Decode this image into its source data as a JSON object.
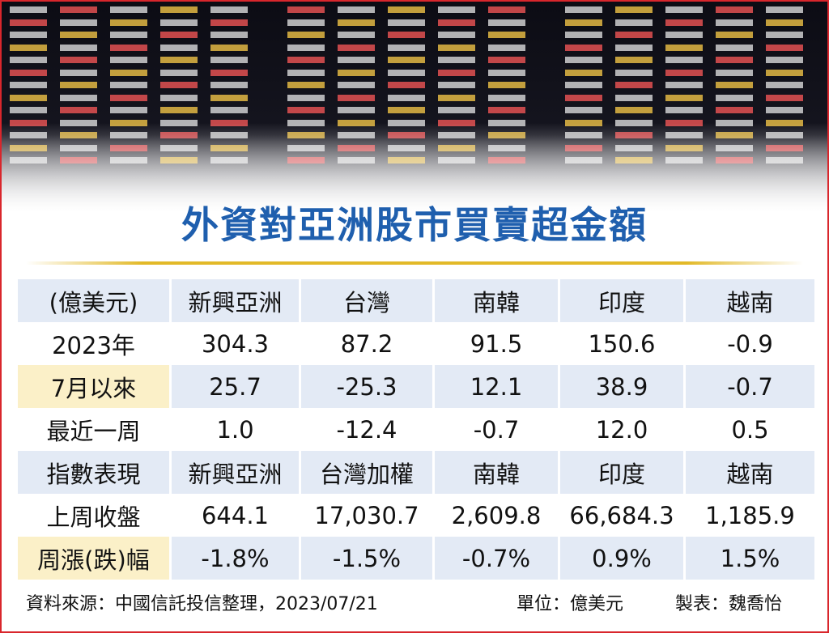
{
  "title": "外資對亞洲股市買賣超金額",
  "table": {
    "rows": [
      [
        "(億美元)",
        "新興亞洲",
        "台灣",
        "南韓",
        "印度",
        "越南"
      ],
      [
        "2023年",
        "304.3",
        "87.2",
        "91.5",
        "150.6",
        "-0.9"
      ],
      [
        "7月以來",
        "25.7",
        "-25.3",
        "12.1",
        "38.9",
        "-0.7"
      ],
      [
        "最近一周",
        "1.0",
        "-12.4",
        "-0.7",
        "12.0",
        "0.5"
      ],
      [
        "指數表現",
        "新興亞洲",
        "台灣加權",
        "南韓",
        "印度",
        "越南"
      ],
      [
        "上周收盤",
        "644.1",
        "17,030.7",
        "2,609.8",
        "66,684.3",
        "1,185.9"
      ],
      [
        "周漲(跌)幅",
        "-1.8%",
        "-1.5%",
        "-0.7%",
        "0.9%",
        "1.5%"
      ]
    ]
  },
  "footer": {
    "source": "資料來源：中國信託投信整理，2023/07/21",
    "unit": "單位：億美元",
    "maker": "製表：魏喬怡"
  }
}
